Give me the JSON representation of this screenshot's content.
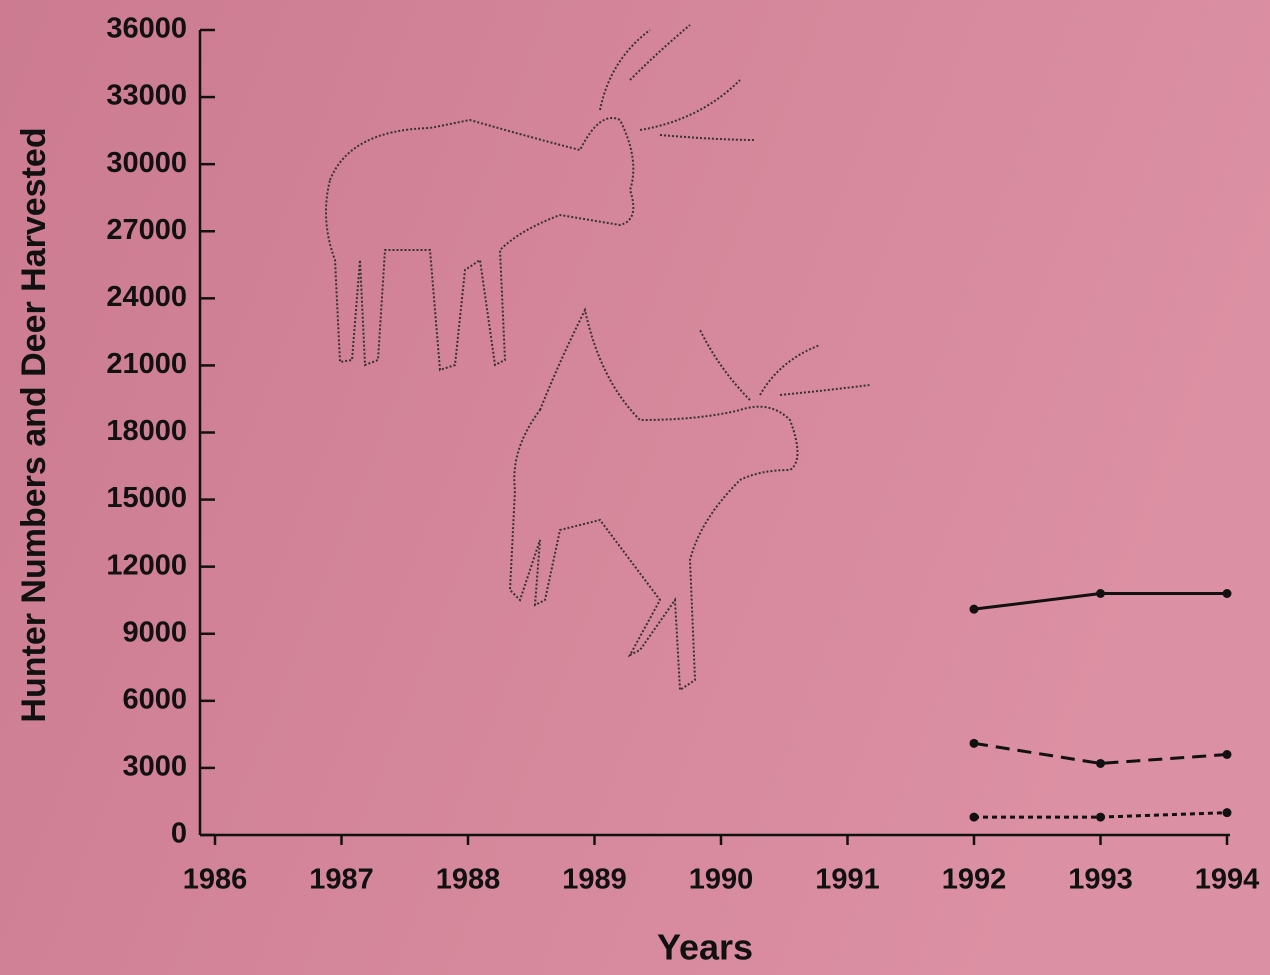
{
  "chart_data": {
    "type": "line",
    "y_label": "Hunter Numbers and Deer Harvested",
    "x_label": "Years",
    "x": [
      1992,
      1993,
      1994
    ],
    "series": [
      {
        "color": "#111111",
        "style": "solid",
        "values": [
          10100,
          10800,
          10800
        ]
      },
      {
        "color": "#111111",
        "style": "dashed",
        "values": [
          4100,
          3200,
          3600
        ]
      },
      {
        "color": "#111111",
        "style": "dotted",
        "values": [
          800,
          800,
          1000
        ]
      }
    ],
    "xlim": [
      1986,
      1994
    ],
    "xticks": [
      1986,
      1987,
      1988,
      1989,
      1990,
      1991,
      1992,
      1993,
      1994
    ],
    "ylim": [
      0,
      36000
    ],
    "yticks": [
      0,
      3000,
      6000,
      9000,
      12000,
      15000,
      18000,
      21000,
      24000,
      27000,
      30000,
      33000,
      36000
    ]
  }
}
